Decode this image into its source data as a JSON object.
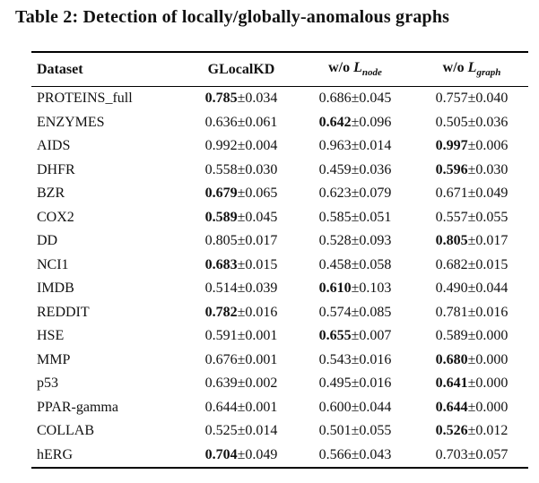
{
  "title": "Table 2: Detection of locally/globally-anomalous graphs",
  "table": {
    "headers": {
      "dataset": "Dataset",
      "glocalkd": "GLocalKD",
      "wo": "w/o ",
      "var": "L",
      "node_sub": "node",
      "graph_sub": "graph"
    },
    "rows": [
      {
        "dataset": "PROTEINS_full",
        "c1": {
          "mean": "0.785",
          "pm": "±0.034",
          "style": "bold"
        },
        "c2": {
          "mean": "0.686",
          "pm": "±0.045",
          "style": "normal"
        },
        "c3": {
          "mean": "0.757",
          "pm": "±0.040",
          "style": "normal"
        }
      },
      {
        "dataset": "ENZYMES",
        "c1": {
          "mean": "0.636",
          "pm": "±0.061",
          "style": "normal"
        },
        "c2": {
          "mean": "0.642",
          "pm": "±0.096",
          "style": "bold"
        },
        "c3": {
          "mean": "0.505",
          "pm": "±0.036",
          "style": "normal"
        }
      },
      {
        "dataset": "AIDS",
        "c1": {
          "mean": "0.992",
          "pm": "±0.004",
          "style": "normal"
        },
        "c2": {
          "mean": "0.963",
          "pm": "±0.014",
          "style": "normal"
        },
        "c3": {
          "mean": "0.997",
          "pm": "±0.006",
          "style": "bold"
        }
      },
      {
        "dataset": "DHFR",
        "c1": {
          "mean": "0.558",
          "pm": "±0.030",
          "style": "normal"
        },
        "c2": {
          "mean": "0.459",
          "pm": "±0.036",
          "style": "normal"
        },
        "c3": {
          "mean": "0.596",
          "pm": "±0.030",
          "style": "bold"
        }
      },
      {
        "dataset": "BZR",
        "c1": {
          "mean": "0.679",
          "pm": "±0.065",
          "style": "bold"
        },
        "c2": {
          "mean": "0.623",
          "pm": "±0.079",
          "style": "normal"
        },
        "c3": {
          "mean": "0.671",
          "pm": "±0.049",
          "style": "normal"
        }
      },
      {
        "dataset": "COX2",
        "c1": {
          "mean": "0.589",
          "pm": "±0.045",
          "style": "bold"
        },
        "c2": {
          "mean": "0.585",
          "pm": "±0.051",
          "style": "normal"
        },
        "c3": {
          "mean": "0.557",
          "pm": "±0.055",
          "style": "normal"
        }
      },
      {
        "dataset": "DD",
        "c1": {
          "mean": "0.805",
          "pm": "±0.017",
          "style": "normal"
        },
        "c2": {
          "mean": "0.528",
          "pm": "±0.093",
          "style": "normal"
        },
        "c3": {
          "mean": "0.805",
          "pm": "±0.017",
          "style": "bold"
        }
      },
      {
        "dataset": "NCI1",
        "c1": {
          "mean": "0.683",
          "pm": "±0.015",
          "style": "bold"
        },
        "c2": {
          "mean": "0.458",
          "pm": "±0.058",
          "style": "normal"
        },
        "c3": {
          "mean": "0.682",
          "pm": "±0.015",
          "style": "normal"
        }
      },
      {
        "dataset": "IMDB",
        "c1": {
          "mean": "0.514",
          "pm": "±0.039",
          "style": "normal"
        },
        "c2": {
          "mean": "0.610",
          "pm": "±0.103",
          "style": "bold"
        },
        "c3": {
          "mean": "0.490",
          "pm": "±0.044",
          "style": "normal"
        }
      },
      {
        "dataset": "REDDIT",
        "c1": {
          "mean": "0.782",
          "pm": "±0.016",
          "style": "bold"
        },
        "c2": {
          "mean": "0.574",
          "pm": "±0.085",
          "style": "normal"
        },
        "c3": {
          "mean": "0.781",
          "pm": "±0.016",
          "style": "normal"
        }
      },
      {
        "dataset": "HSE",
        "c1": {
          "mean": "0.591",
          "pm": "±0.001",
          "style": "normal"
        },
        "c2": {
          "mean": "0.655",
          "pm": "±0.007",
          "style": "bold"
        },
        "c3": {
          "mean": "0.589",
          "pm": "±0.000",
          "style": "normal"
        }
      },
      {
        "dataset": "MMP",
        "c1": {
          "mean": "0.676",
          "pm": "±0.001",
          "style": "normal"
        },
        "c2": {
          "mean": "0.543",
          "pm": "±0.016",
          "style": "normal"
        },
        "c3": {
          "mean": "0.680",
          "pm": "±0.000",
          "style": "bold"
        }
      },
      {
        "dataset": "p53",
        "c1": {
          "mean": "0.639",
          "pm": "±0.002",
          "style": "normal"
        },
        "c2": {
          "mean": "0.495",
          "pm": "±0.016",
          "style": "normal"
        },
        "c3": {
          "mean": "0.641",
          "pm": "±0.000",
          "style": "bold"
        }
      },
      {
        "dataset": "PPAR-gamma",
        "c1": {
          "mean": "0.644",
          "pm": "±0.001",
          "style": "normal"
        },
        "c2": {
          "mean": "0.600",
          "pm": "±0.044",
          "style": "normal"
        },
        "c3": {
          "mean": "0.644",
          "pm": "±0.000",
          "style": "bold"
        }
      },
      {
        "dataset": "COLLAB",
        "c1": {
          "mean": "0.525",
          "pm": "±0.014",
          "style": "normal"
        },
        "c2": {
          "mean": "0.501",
          "pm": "±0.055",
          "style": "normal"
        },
        "c3": {
          "mean": "0.526",
          "pm": "±0.012",
          "style": "bold"
        }
      },
      {
        "dataset": "hERG",
        "c1": {
          "mean": "0.704",
          "pm": "±0.049",
          "style": "bold"
        },
        "c2": {
          "mean": "0.566",
          "pm": "±0.043",
          "style": "normal"
        },
        "c3": {
          "mean": "0.703",
          "pm": "±0.057",
          "style": "normal"
        }
      }
    ]
  }
}
